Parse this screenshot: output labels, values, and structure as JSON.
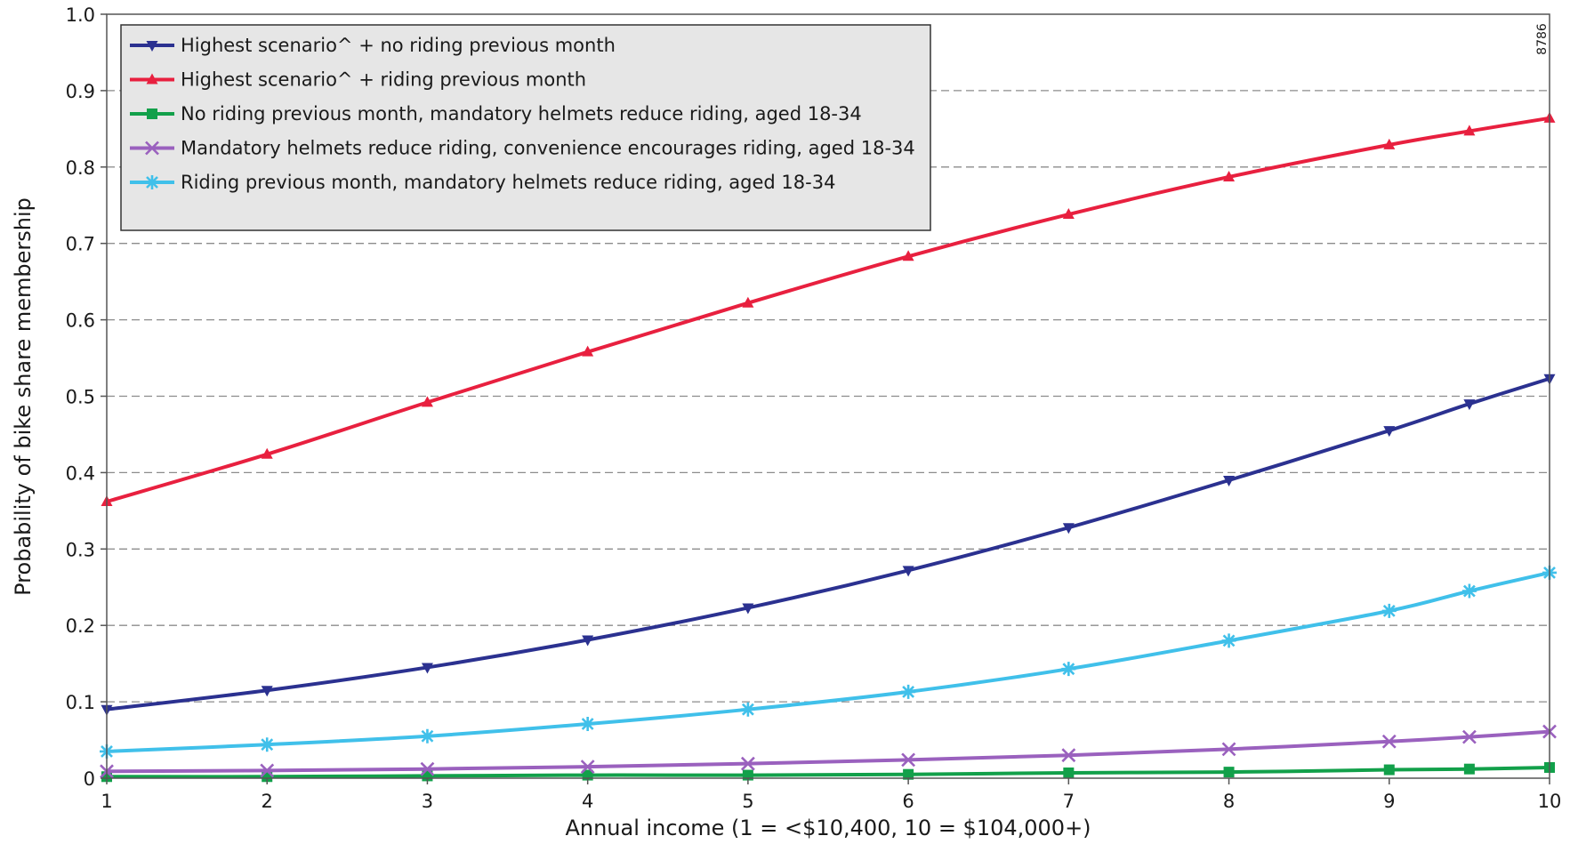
{
  "chart_data": {
    "type": "line",
    "xlabel": "Annual income (1 = <$10,400, 10 = $104,000+)",
    "ylabel": "Probability of bike share membership",
    "code": "8786",
    "xlim": [
      1,
      10
    ],
    "ylim": [
      0,
      1.0
    ],
    "x_ticks": [
      "1",
      "2",
      "3",
      "4",
      "5",
      "6",
      "7",
      "8",
      "9",
      "10"
    ],
    "y_ticks": [
      "0",
      "0.1",
      "0.2",
      "0.3",
      "0.4",
      "0.5",
      "0.6",
      "0.7",
      "0.8",
      "0.9",
      "1.0"
    ],
    "grid": true,
    "legend_position": "top-left",
    "x": [
      1,
      2,
      3,
      4,
      5,
      6,
      7,
      8,
      9,
      9.5,
      10
    ],
    "series": [
      {
        "name": "Highest scenario^ + no riding previous month",
        "color": "#2b3190",
        "marker": "triangle-down",
        "values": [
          0.09,
          0.115,
          0.145,
          0.181,
          0.223,
          0.272,
          0.328,
          0.39,
          0.455,
          0.49,
          0.523
        ]
      },
      {
        "name": "Highest scenario^ + riding previous month",
        "color": "#e8203f",
        "marker": "triangle-up",
        "values": [
          0.362,
          0.424,
          0.492,
          0.558,
          0.622,
          0.683,
          0.738,
          0.787,
          0.829,
          0.847,
          0.864
        ]
      },
      {
        "name": "No riding previous month, mandatory helmets reduce riding, aged 18-34",
        "color": "#12a04a",
        "marker": "square",
        "values": [
          0.002,
          0.002,
          0.003,
          0.004,
          0.004,
          0.005,
          0.007,
          0.008,
          0.011,
          0.012,
          0.014
        ]
      },
      {
        "name": "Mandatory helmets reduce riding, convenience encourages riding, aged 18-34",
        "color": "#9a61be",
        "marker": "x",
        "values": [
          0.009,
          0.01,
          0.012,
          0.015,
          0.019,
          0.024,
          0.03,
          0.038,
          0.048,
          0.054,
          0.061
        ]
      },
      {
        "name": "Riding previous month, mandatory helmets reduce riding, aged 18-34",
        "color": "#40c0ea",
        "marker": "asterisk",
        "values": [
          0.035,
          0.044,
          0.055,
          0.071,
          0.09,
          0.113,
          0.143,
          0.18,
          0.219,
          0.245,
          0.269
        ]
      }
    ]
  }
}
